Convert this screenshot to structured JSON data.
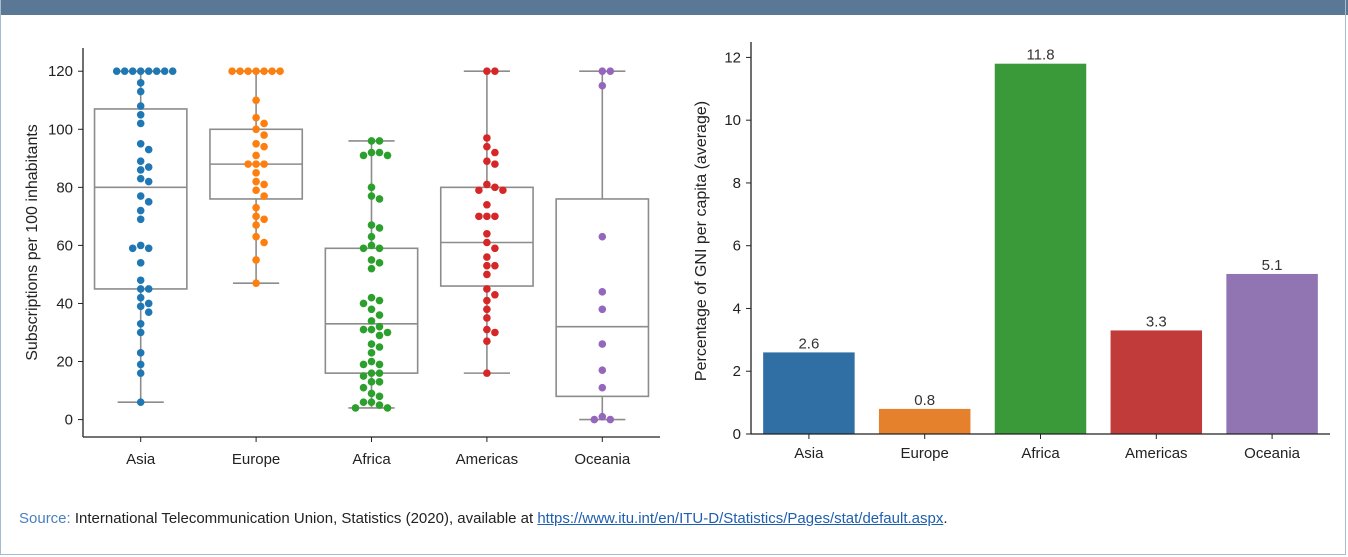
{
  "chart_data": [
    {
      "type": "box-swarm",
      "categories": [
        "Asia",
        "Europe",
        "Africa",
        "Americas",
        "Oceania"
      ],
      "ylabel": "Subscriptions per 100 inhabitants",
      "xlabel": "",
      "ylim": [
        -6,
        128
      ],
      "yticks": [
        0,
        20,
        40,
        60,
        80,
        100,
        120
      ],
      "grid": false,
      "colors": [
        "#1f77b4",
        "#ff7f0e",
        "#2ca02c",
        "#d62728",
        "#9467bd"
      ],
      "boxes": [
        {
          "category": "Asia",
          "whisker_low": 6,
          "q1": 45,
          "median": 80,
          "q3": 107,
          "whisker_high": 120
        },
        {
          "category": "Europe",
          "whisker_low": 47,
          "q1": 76,
          "median": 88,
          "q3": 100,
          "whisker_high": 120
        },
        {
          "category": "Africa",
          "whisker_low": 4,
          "q1": 16,
          "median": 33,
          "q3": 59,
          "whisker_high": 96
        },
        {
          "category": "Americas",
          "whisker_low": 16,
          "q1": 46,
          "median": 61,
          "q3": 80,
          "whisker_high": 120
        },
        {
          "category": "Oceania",
          "whisker_low": 0,
          "q1": 8,
          "median": 32,
          "q3": 76,
          "whisker_high": 120
        }
      ],
      "series": [
        {
          "category": "Asia",
          "values": [
            120,
            120,
            120,
            120,
            120,
            120,
            120,
            120,
            116,
            113,
            108,
            105,
            102,
            95,
            93,
            89,
            87,
            86,
            83,
            82,
            77,
            75,
            72,
            69,
            60,
            59,
            59,
            54,
            48,
            45,
            45,
            42,
            40,
            39,
            37,
            33,
            30,
            23,
            19,
            16,
            6
          ]
        },
        {
          "category": "Europe",
          "values": [
            120,
            120,
            120,
            120,
            120,
            120,
            120,
            110,
            104,
            102,
            100,
            98,
            95,
            94,
            91,
            88,
            88,
            88,
            85,
            82,
            81,
            79,
            77,
            73,
            70,
            69,
            67,
            63,
            61,
            55,
            47
          ]
        },
        {
          "category": "Africa",
          "values": [
            96,
            96,
            92,
            92,
            91,
            91,
            80,
            77,
            76,
            67,
            66,
            63,
            60,
            59,
            59,
            55,
            54,
            52,
            42,
            41,
            40,
            38,
            36,
            34,
            32,
            31,
            31,
            30,
            29,
            26,
            25,
            23,
            20,
            19,
            19,
            16,
            16,
            15,
            13,
            13,
            11,
            9,
            8,
            6,
            6,
            5,
            4,
            4
          ]
        },
        {
          "category": "Americas",
          "values": [
            120,
            120,
            97,
            94,
            92,
            89,
            88,
            81,
            80,
            79,
            79,
            74,
            70,
            70,
            70,
            64,
            61,
            59,
            56,
            53,
            53,
            50,
            45,
            43,
            41,
            38,
            35,
            31,
            30,
            27,
            16
          ]
        },
        {
          "category": "Oceania",
          "values": [
            120,
            120,
            115,
            63,
            44,
            38,
            26,
            17,
            11,
            1,
            0,
            0
          ]
        }
      ]
    },
    {
      "type": "bar",
      "categories": [
        "Asia",
        "Europe",
        "Africa",
        "Americas",
        "Oceania"
      ],
      "values": [
        2.6,
        0.8,
        11.8,
        3.3,
        5.1
      ],
      "data_labels": [
        "2.6",
        "0.8",
        "11.8",
        "3.3",
        "5.1"
      ],
      "ylabel": "Percentage of GNI per capita (average)",
      "xlabel": "",
      "ylim": [
        0,
        12.3
      ],
      "yticks": [
        0,
        2,
        4,
        6,
        8,
        10,
        12
      ],
      "grid": false,
      "colors": [
        "#2f6fa3",
        "#e5802c",
        "#3a9a3a",
        "#c23b3b",
        "#9175b2"
      ]
    }
  ],
  "source": {
    "prefix": "Source:",
    "text": " International Telecommunication Union, Statistics (2020), available at ",
    "link": "https://www.itu.int/en/ITU-D/Statistics/Pages/stat/default.aspx",
    "suffix": "."
  }
}
